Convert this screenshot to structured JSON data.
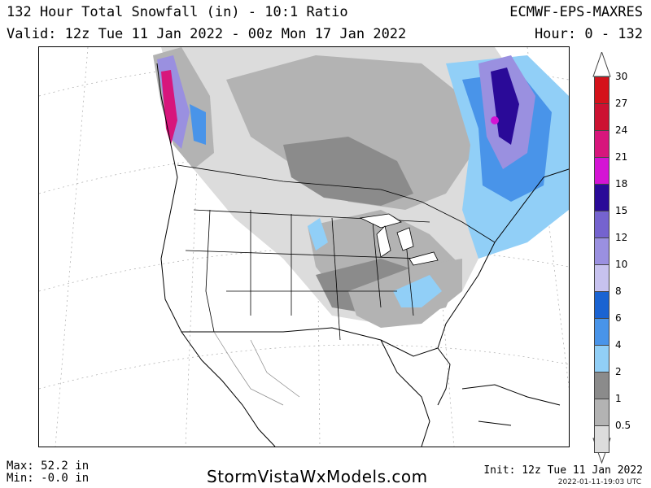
{
  "header": {
    "title": "132 Hour Total Snowfall (in) - 10:1 Ratio",
    "model": "ECMWF-EPS-MAXRES",
    "valid": "Valid: 12z Tue 11 Jan 2022 - 00z Mon 17 Jan 2022",
    "hour_range": "Hour: 0 - 132"
  },
  "legend": {
    "levels": [
      {
        "label": "30",
        "color": "#d4121b"
      },
      {
        "label": "27",
        "color": "#cc1232"
      },
      {
        "label": "24",
        "color": "#d7167c"
      },
      {
        "label": "21",
        "color": "#d414d4"
      },
      {
        "label": "18",
        "color": "#2a0a98"
      },
      {
        "label": "15",
        "color": "#7563cf"
      },
      {
        "label": "12",
        "color": "#9a90e0"
      },
      {
        "label": "10",
        "color": "#c7c2ef"
      },
      {
        "label": "8",
        "color": "#1a63d2"
      },
      {
        "label": "6",
        "color": "#4994e9"
      },
      {
        "label": "4",
        "color": "#91cff7"
      },
      {
        "label": "2",
        "color": "#8b8b8b"
      },
      {
        "label": "1",
        "color": "#b3b3b3"
      },
      {
        "label": "0.5",
        "color": "#dcdcdc"
      }
    ],
    "low_fill": "#f2f2f2"
  },
  "stats": {
    "max": "Max: 52.2 in",
    "min": "Min: -0.0 in"
  },
  "footer": {
    "brand": "StormVistaWxModels.com",
    "init": "Init: 12z Tue 11 Jan 2022",
    "stamp": "2022-01-11-19:03 UTC"
  }
}
